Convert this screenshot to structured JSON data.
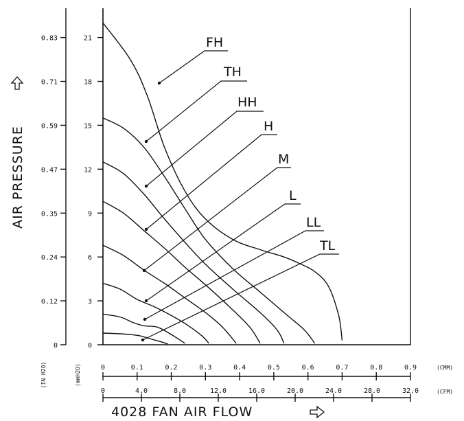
{
  "chart_data": {
    "type": "line",
    "title": "4028 FAN AIR FLOW",
    "ylabel": "AIR PRESSURE",
    "y_unit_inner": "(mmH2O)",
    "y_unit_outer": "(IN H2O)",
    "x_unit_cmm": "(CMM)",
    "x_unit_cfm": "(CFM)",
    "y_mm_ticks": [
      "0",
      "3",
      "6",
      "9",
      "12",
      "15",
      "18",
      "21"
    ],
    "y_in_ticks": [
      "0",
      "0.12",
      "0.24",
      "0.35",
      "0.47",
      "0.59",
      "0.71",
      "0.83"
    ],
    "x_cmm_ticks": [
      "0",
      "0.1",
      "0.2",
      "0.3",
      "0.4",
      "0.5",
      "0.6",
      "0.7",
      "0.8",
      "0.9"
    ],
    "x_cfm_ticks": [
      "0",
      "4.0",
      "8.0",
      "12.0",
      "16.0",
      "20.0",
      "24.0",
      "28.0",
      "32.0"
    ],
    "xlim_cmm": [
      0,
      0.9
    ],
    "ylim_mm": [
      0,
      23
    ],
    "grid": false,
    "arrow_icon": "outline-arrow-icon",
    "series": [
      {
        "name": "FH",
        "points": [
          [
            0,
            22.0
          ],
          [
            0.08,
            19.5
          ],
          [
            0.13,
            17.0
          ],
          [
            0.18,
            13.5
          ],
          [
            0.24,
            10.5
          ],
          [
            0.3,
            8.6
          ],
          [
            0.38,
            7.2
          ],
          [
            0.46,
            6.5
          ],
          [
            0.53,
            6.0
          ],
          [
            0.58,
            5.5
          ],
          [
            0.62,
            5.0
          ],
          [
            0.66,
            4.0
          ],
          [
            0.69,
            2.0
          ],
          [
            0.7,
            0.3
          ]
        ]
      },
      {
        "name": "TH",
        "points": [
          [
            0,
            15.5
          ],
          [
            0.06,
            14.8
          ],
          [
            0.12,
            13.5
          ],
          [
            0.18,
            11.5
          ],
          [
            0.24,
            9.3
          ],
          [
            0.3,
            7.2
          ],
          [
            0.38,
            5.2
          ],
          [
            0.46,
            3.6
          ],
          [
            0.54,
            2.0
          ],
          [
            0.59,
            1.0
          ],
          [
            0.62,
            0.1
          ]
        ]
      },
      {
        "name": "HH",
        "points": [
          [
            0,
            12.5
          ],
          [
            0.06,
            11.7
          ],
          [
            0.12,
            10.3
          ],
          [
            0.18,
            8.6
          ],
          [
            0.24,
            7.0
          ],
          [
            0.3,
            5.5
          ],
          [
            0.38,
            3.8
          ],
          [
            0.46,
            2.2
          ],
          [
            0.51,
            1.0
          ],
          [
            0.53,
            0.1
          ]
        ]
      },
      {
        "name": "H",
        "points": [
          [
            0,
            9.8
          ],
          [
            0.06,
            9.0
          ],
          [
            0.12,
            7.8
          ],
          [
            0.18,
            6.6
          ],
          [
            0.24,
            5.3
          ],
          [
            0.3,
            4.1
          ],
          [
            0.37,
            2.6
          ],
          [
            0.43,
            1.2
          ],
          [
            0.46,
            0.1
          ]
        ]
      },
      {
        "name": "M",
        "points": [
          [
            0,
            6.8
          ],
          [
            0.06,
            6.1
          ],
          [
            0.12,
            5.1
          ],
          [
            0.18,
            4.2
          ],
          [
            0.24,
            3.2
          ],
          [
            0.3,
            2.2
          ],
          [
            0.35,
            1.2
          ],
          [
            0.39,
            0.1
          ]
        ]
      },
      {
        "name": "L",
        "points": [
          [
            0,
            4.2
          ],
          [
            0.05,
            3.8
          ],
          [
            0.1,
            3.1
          ],
          [
            0.15,
            2.6
          ],
          [
            0.2,
            2.0
          ],
          [
            0.25,
            1.3
          ],
          [
            0.29,
            0.6
          ],
          [
            0.31,
            0.1
          ]
        ]
      },
      {
        "name": "LL",
        "points": [
          [
            0,
            2.1
          ],
          [
            0.05,
            1.9
          ],
          [
            0.09,
            1.5
          ],
          [
            0.12,
            1.3
          ],
          [
            0.16,
            1.2
          ],
          [
            0.2,
            0.7
          ],
          [
            0.24,
            0.1
          ]
        ]
      },
      {
        "name": "TL",
        "points": [
          [
            0,
            0.8
          ],
          [
            0.05,
            0.75
          ],
          [
            0.08,
            0.7
          ],
          [
            0.11,
            0.6
          ],
          [
            0.14,
            0.4
          ],
          [
            0.17,
            0.2
          ],
          [
            0.19,
            0.05
          ]
        ]
      }
    ]
  }
}
